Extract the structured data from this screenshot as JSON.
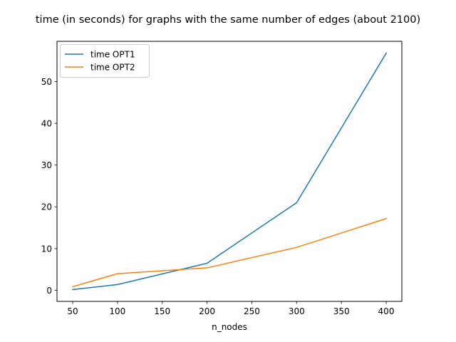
{
  "chart_data": {
    "type": "line",
    "title": "time (in seconds) for graphs with the same number of edges (about 2100)",
    "xlabel": "n_nodes",
    "ylabel": "",
    "x": [
      50,
      100,
      200,
      300,
      400
    ],
    "series": [
      {
        "name": "time OPT1",
        "color": "#1f77b4",
        "values": [
          0.2,
          1.4,
          6.5,
          21.0,
          56.8
        ]
      },
      {
        "name": "time OPT2",
        "color": "#ff7f0e",
        "values": [
          0.9,
          4.0,
          5.4,
          10.3,
          17.2
        ]
      }
    ],
    "xlim": [
      32.5,
      417.5
    ],
    "ylim": [
      -2.63,
      59.63
    ],
    "xticks": [
      50,
      100,
      150,
      200,
      250,
      300,
      350,
      400
    ],
    "yticks": [
      0,
      10,
      20,
      30,
      40,
      50
    ],
    "grid": false,
    "legend_position": "top-left"
  }
}
